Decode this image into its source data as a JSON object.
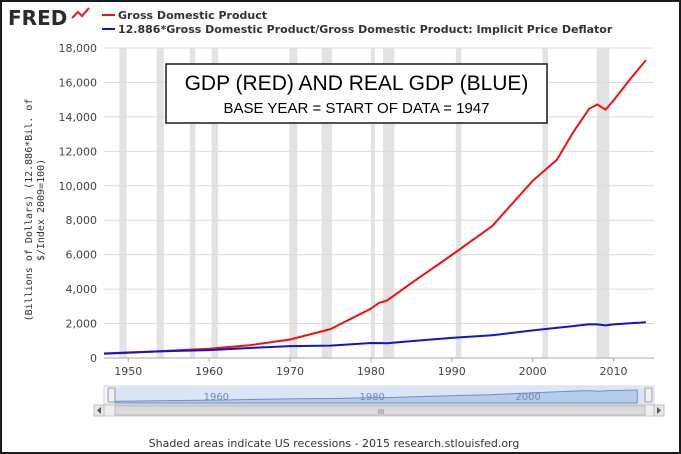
{
  "logo": {
    "text": "FRED"
  },
  "chart_data": {
    "type": "line",
    "title": "",
    "xlabel": "",
    "ylabel_lines": [
      "(Billions of Dollars)  (12.886*Bil. of",
      "$/Index 2009=100)"
    ],
    "xlim": [
      1947,
      2015
    ],
    "ylim": [
      0,
      18000
    ],
    "x_ticks": [
      1950,
      1960,
      1970,
      1980,
      1990,
      2000,
      2010
    ],
    "y_ticks": [
      0,
      2000,
      4000,
      6000,
      8000,
      10000,
      12000,
      14000,
      16000,
      18000
    ],
    "y_tick_labels": [
      "0",
      "2,000",
      "4,000",
      "6,000",
      "8,000",
      "10,000",
      "12,000",
      "14,000",
      "16,000",
      "18,000"
    ],
    "grid": true,
    "legend_position": "top-left",
    "recessions": [
      [
        1948.9,
        1949.8
      ],
      [
        1953.5,
        1954.4
      ],
      [
        1957.6,
        1958.3
      ],
      [
        1960.3,
        1961.1
      ],
      [
        1969.9,
        1970.9
      ],
      [
        1973.9,
        1975.2
      ],
      [
        1980.0,
        1980.5
      ],
      [
        1981.5,
        1982.9
      ],
      [
        1990.5,
        1991.2
      ],
      [
        2001.2,
        2001.9
      ],
      [
        2007.9,
        2009.5
      ]
    ],
    "series": [
      {
        "name": "Gross Domestic Product",
        "color": "#ee1111",
        "x": [
          1947,
          1950,
          1955,
          1960,
          1965,
          1970,
          1975,
          1980,
          1981,
          1982,
          1985,
          1990,
          1995,
          2000,
          2003,
          2005,
          2007,
          2008,
          2009,
          2010,
          2012,
          2014
        ],
        "y": [
          245,
          300,
          425,
          540,
          740,
          1075,
          1680,
          2860,
          3200,
          3340,
          4350,
          5980,
          7660,
          10290,
          11510,
          13100,
          14480,
          14720,
          14420,
          14960,
          16160,
          17300
        ]
      },
      {
        "name": "12.886*Gross Domestic Product/Gross Domestic Product: Implicit Price Deflator",
        "color": "#1515c8",
        "x": [
          1947,
          1950,
          1955,
          1960,
          1965,
          1970,
          1975,
          1980,
          1982,
          1985,
          1990,
          1995,
          2000,
          2005,
          2007,
          2008,
          2009,
          2010,
          2014
        ],
        "y": [
          260,
          320,
          400,
          460,
          580,
          690,
          720,
          870,
          860,
          980,
          1170,
          1320,
          1600,
          1850,
          1960,
          1950,
          1890,
          1950,
          2080
        ]
      }
    ],
    "annotation": {
      "title": "GDP (RED) AND REAL GDP (BLUE)",
      "subtitle": "BASE YEAR = START OF DATA = 1947"
    },
    "navigator": {
      "labels": [
        1960,
        1980,
        2000
      ],
      "handle_label": "III"
    }
  },
  "footer": {
    "text": "Shaded areas indicate US recessions - 2015 research.stlouisfed.org"
  },
  "colors": {
    "recession": "#e3e3e3",
    "grid": "#dcdcdc",
    "navigator_fill": "#c8d7ee",
    "navigator_line": "#6d8fc9"
  }
}
